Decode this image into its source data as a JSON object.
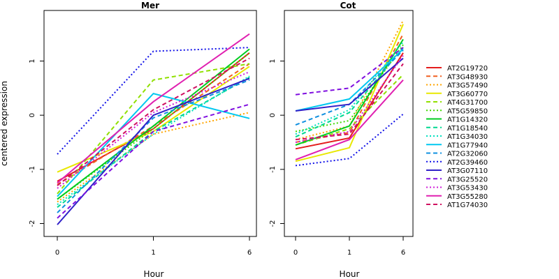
{
  "chart_data": [
    {
      "type": "line",
      "title": "Mer",
      "xlabel": "Hour",
      "ylabel": "centered expression",
      "x": [
        "0",
        "1",
        "6"
      ],
      "xlim": [
        0,
        2
      ],
      "ylim": [
        -2.1,
        1.8
      ],
      "yticks": [
        -2,
        -1,
        0,
        1
      ],
      "series": [
        {
          "name": "AT2G19720",
          "color": "#e41c1c",
          "dash": "solid",
          "values": [
            -1.22,
            -0.25,
            1.15
          ]
        },
        {
          "name": "AT3G48930",
          "color": "#f06020",
          "dash": "dashed",
          "values": [
            -1.28,
            -0.2,
            0.95
          ]
        },
        {
          "name": "AT3G57490",
          "color": "#ffa500",
          "dash": "dotted",
          "values": [
            -1.6,
            -0.35,
            0.05
          ]
        },
        {
          "name": "AT3G60770",
          "color": "#e8e800",
          "dash": "solid",
          "values": [
            -1.05,
            -0.3,
            0.9
          ]
        },
        {
          "name": "AT4G31700",
          "color": "#90e000",
          "dash": "dashed",
          "values": [
            -1.45,
            0.65,
            0.95
          ]
        },
        {
          "name": "AT5G59850",
          "color": "#40d800",
          "dash": "dotted",
          "values": [
            -1.55,
            -0.25,
            1.15
          ]
        },
        {
          "name": "AT1G14320",
          "color": "#00cc20",
          "dash": "solid",
          "values": [
            -1.55,
            -0.2,
            1.22
          ]
        },
        {
          "name": "AT1G18540",
          "color": "#00d890",
          "dash": "dashed",
          "values": [
            -1.7,
            -0.3,
            0.7
          ]
        },
        {
          "name": "AT1G34030",
          "color": "#00e0c0",
          "dash": "dotted",
          "values": [
            -1.65,
            -0.35,
            0.72
          ]
        },
        {
          "name": "AT1G77940",
          "color": "#00c8f0",
          "dash": "solid",
          "values": [
            -1.5,
            0.4,
            -0.06
          ]
        },
        {
          "name": "AT2G32060",
          "color": "#1090e0",
          "dash": "dashed",
          "values": [
            -1.8,
            -0.05,
            0.65
          ]
        },
        {
          "name": "AT2G39460",
          "color": "#1010e8",
          "dash": "dotted",
          "values": [
            -0.72,
            1.18,
            1.25
          ]
        },
        {
          "name": "AT3G07110",
          "color": "#3020c8",
          "dash": "solid",
          "values": [
            -2.02,
            0.0,
            0.68
          ]
        },
        {
          "name": "AT3G25520",
          "color": "#8010e0",
          "dash": "dashed",
          "values": [
            -1.9,
            -0.3,
            0.2
          ]
        },
        {
          "name": "AT3G53430",
          "color": "#d020d8",
          "dash": "dotted",
          "values": [
            -1.35,
            0.05,
            0.8
          ]
        },
        {
          "name": "AT3G55280",
          "color": "#e020b0",
          "dash": "solid",
          "values": [
            -1.25,
            0.25,
            1.5
          ]
        },
        {
          "name": "AT1G74030",
          "color": "#d01060",
          "dash": "dashed",
          "values": [
            -1.3,
            0.1,
            1.05
          ]
        }
      ]
    },
    {
      "type": "line",
      "title": "Cot",
      "xlabel": "Hour",
      "ylabel": "",
      "x": [
        "0",
        "1",
        "6"
      ],
      "xlim": [
        0,
        2
      ],
      "ylim": [
        -2.1,
        1.8
      ],
      "yticks": [
        -2,
        -1,
        0,
        1
      ],
      "series": [
        {
          "name": "AT2G19720",
          "color": "#e41c1c",
          "dash": "solid",
          "values": [
            -0.62,
            -0.42,
            1.15
          ]
        },
        {
          "name": "AT3G48930",
          "color": "#f06020",
          "dash": "dashed",
          "values": [
            -0.5,
            -0.32,
            1.5
          ]
        },
        {
          "name": "AT3G57490",
          "color": "#ffa500",
          "dash": "dotted",
          "values": [
            -0.45,
            -0.2,
            1.75
          ]
        },
        {
          "name": "AT3G60770",
          "color": "#e8e800",
          "dash": "solid",
          "values": [
            -0.85,
            -0.6,
            1.68
          ]
        },
        {
          "name": "AT4G31700",
          "color": "#90e000",
          "dash": "dashed",
          "values": [
            -0.55,
            -0.25,
            0.75
          ]
        },
        {
          "name": "AT5G59850",
          "color": "#40d800",
          "dash": "dotted",
          "values": [
            -0.3,
            -0.1,
            1.3
          ]
        },
        {
          "name": "AT1G14320",
          "color": "#00cc20",
          "dash": "solid",
          "values": [
            -0.55,
            -0.2,
            1.4
          ]
        },
        {
          "name": "AT1G18540",
          "color": "#00d890",
          "dash": "dashed",
          "values": [
            -0.4,
            0.05,
            1.25
          ]
        },
        {
          "name": "AT1G34030",
          "color": "#00e0c0",
          "dash": "dotted",
          "values": [
            -0.35,
            0.1,
            1.35
          ]
        },
        {
          "name": "AT1G77940",
          "color": "#00c8f0",
          "dash": "solid",
          "values": [
            0.08,
            0.3,
            1.22
          ]
        },
        {
          "name": "AT2G32060",
          "color": "#1090e0",
          "dash": "dashed",
          "values": [
            -0.18,
            0.2,
            1.2
          ]
        },
        {
          "name": "AT2G39460",
          "color": "#1010e8",
          "dash": "dotted",
          "values": [
            -0.93,
            -0.8,
            0.02
          ]
        },
        {
          "name": "AT3G07110",
          "color": "#3020c8",
          "dash": "solid",
          "values": [
            0.08,
            0.2,
            1.05
          ]
        },
        {
          "name": "AT3G25520",
          "color": "#8010e0",
          "dash": "dashed",
          "values": [
            0.38,
            0.5,
            1.25
          ]
        },
        {
          "name": "AT3G53430",
          "color": "#d020d8",
          "dash": "dotted",
          "values": [
            -0.5,
            -0.3,
            1.1
          ]
        },
        {
          "name": "AT3G55280",
          "color": "#e020b0",
          "dash": "solid",
          "values": [
            -0.82,
            -0.45,
            0.65
          ]
        },
        {
          "name": "AT1G74030",
          "color": "#d01060",
          "dash": "dashed",
          "values": [
            -0.45,
            -0.35,
            0.95
          ]
        }
      ]
    }
  ]
}
